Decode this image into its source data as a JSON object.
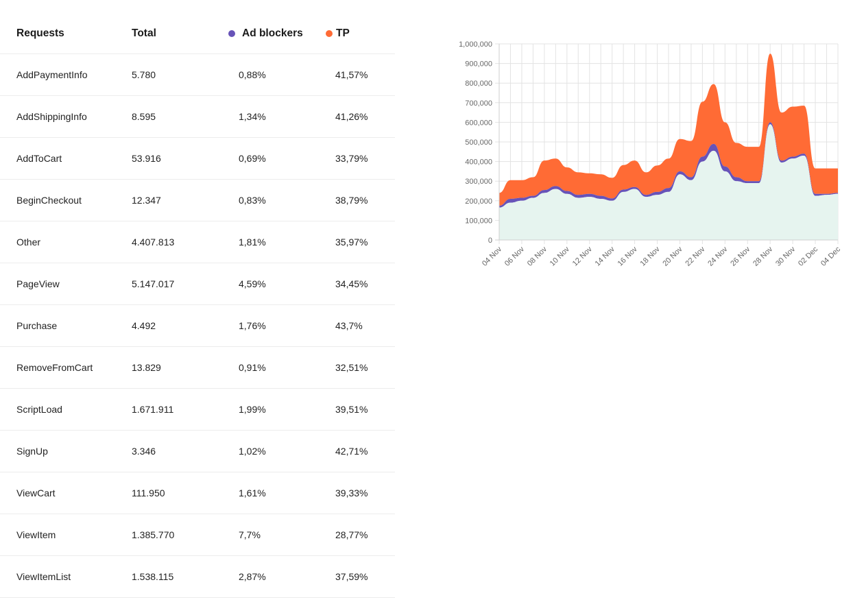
{
  "table": {
    "headers": {
      "requests": "Requests",
      "total": "Total",
      "ad_blockers": "Ad blockers",
      "tp": "TP"
    },
    "colors": {
      "ad_blockers": "#6753b8",
      "tp": "#ff6b35"
    },
    "rows": [
      {
        "name": "AddPaymentInfo",
        "total": "5.780",
        "ad_blockers": "0,88%",
        "tp": "41,57%"
      },
      {
        "name": "AddShippingInfo",
        "total": "8.595",
        "ad_blockers": "1,34%",
        "tp": "41,26%"
      },
      {
        "name": "AddToCart",
        "total": "53.916",
        "ad_blockers": "0,69%",
        "tp": "33,79%"
      },
      {
        "name": "BeginCheckout",
        "total": "12.347",
        "ad_blockers": "0,83%",
        "tp": "38,79%"
      },
      {
        "name": "Other",
        "total": "4.407.813",
        "ad_blockers": "1,81%",
        "tp": "35,97%"
      },
      {
        "name": "PageView",
        "total": "5.147.017",
        "ad_blockers": "4,59%",
        "tp": "34,45%"
      },
      {
        "name": "Purchase",
        "total": "4.492",
        "ad_blockers": "1,76%",
        "tp": "43,7%"
      },
      {
        "name": "RemoveFromCart",
        "total": "13.829",
        "ad_blockers": "0,91%",
        "tp": "32,51%"
      },
      {
        "name": "ScriptLoad",
        "total": "1.671.911",
        "ad_blockers": "1,99%",
        "tp": "39,51%"
      },
      {
        "name": "SignUp",
        "total": "3.346",
        "ad_blockers": "1,02%",
        "tp": "42,71%"
      },
      {
        "name": "ViewCart",
        "total": "111.950",
        "ad_blockers": "1,61%",
        "tp": "39,33%"
      },
      {
        "name": "ViewItem",
        "total": "1.385.770",
        "ad_blockers": "7,7%",
        "tp": "28,77%"
      },
      {
        "name": "ViewItemList",
        "total": "1.538.115",
        "ad_blockers": "2,87%",
        "tp": "37,59%"
      }
    ]
  },
  "chart_data": {
    "type": "area",
    "stacked": true,
    "title": "",
    "xlabel": "",
    "ylabel": "",
    "ylim": [
      0,
      1000000
    ],
    "y_ticks": [
      "0",
      "100,000",
      "200,000",
      "300,000",
      "400,000",
      "500,000",
      "600,000",
      "700,000",
      "800,000",
      "900,000",
      "1,000,000"
    ],
    "x_ticks": [
      "04 Nov",
      "06 Nov",
      "08 Nov",
      "10 Nov",
      "12 Nov",
      "14 Nov",
      "16 Nov",
      "18 Nov",
      "20 Nov",
      "22 Nov",
      "24 Nov",
      "26 Nov",
      "28 Nov",
      "30 Nov",
      "02 Dec",
      "04 Dec"
    ],
    "x": [
      "04 Nov",
      "05 Nov",
      "06 Nov",
      "07 Nov",
      "08 Nov",
      "09 Nov",
      "10 Nov",
      "11 Nov",
      "12 Nov",
      "13 Nov",
      "14 Nov",
      "15 Nov",
      "16 Nov",
      "17 Nov",
      "18 Nov",
      "19 Nov",
      "20 Nov",
      "21 Nov",
      "22 Nov",
      "23 Nov",
      "24 Nov",
      "25 Nov",
      "26 Nov",
      "27 Nov",
      "28 Nov",
      "29 Nov",
      "30 Nov",
      "01 Dec",
      "02 Dec",
      "03 Dec",
      "04 Dec"
    ],
    "grid": true,
    "series": [
      {
        "color": "#e6f4ef",
        "values": [
          165000,
          190000,
          200000,
          215000,
          240000,
          260000,
          235000,
          215000,
          220000,
          210000,
          200000,
          245000,
          260000,
          220000,
          230000,
          245000,
          335000,
          305000,
          400000,
          455000,
          350000,
          300000,
          290000,
          290000,
          590000,
          395000,
          415000,
          430000,
          225000,
          230000,
          235000
        ]
      },
      {
        "color": "#6753b8",
        "values": [
          10000,
          20000,
          15000,
          10000,
          15000,
          15000,
          15000,
          15000,
          15000,
          15000,
          12000,
          12000,
          10000,
          10000,
          15000,
          20000,
          15000,
          15000,
          25000,
          35000,
          25000,
          20000,
          10000,
          10000,
          10000,
          10000,
          10000,
          10000,
          10000,
          5000,
          5000
        ]
      },
      {
        "color": "#ff6b35",
        "values": [
          65000,
          95000,
          90000,
          95000,
          150000,
          140000,
          120000,
          115000,
          105000,
          110000,
          105000,
          125000,
          135000,
          115000,
          135000,
          150000,
          165000,
          185000,
          280000,
          305000,
          225000,
          175000,
          175000,
          175000,
          350000,
          245000,
          255000,
          245000,
          130000,
          130000,
          125000
        ]
      }
    ]
  }
}
